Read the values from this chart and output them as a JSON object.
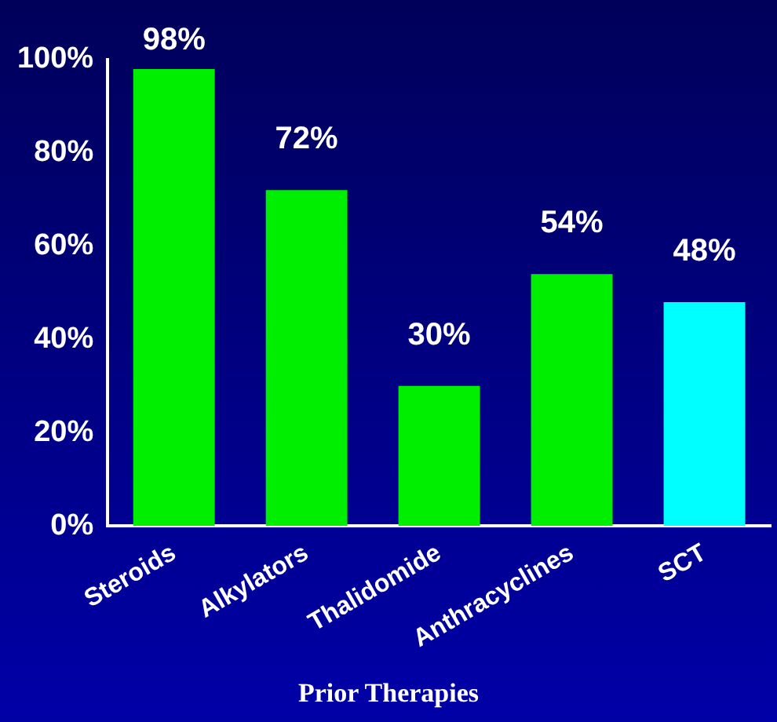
{
  "chart_data": {
    "type": "bar",
    "xlabel": "Prior Therapies",
    "categories": [
      "Steroids",
      "Alkylators",
      "Thalidomide",
      "Anthracyclines",
      "SCT"
    ],
    "values": [
      98,
      72,
      30,
      54,
      48
    ],
    "colors": [
      "#00ee00",
      "#00ee00",
      "#00ee00",
      "#00ee00",
      "#00ffff"
    ],
    "value_labels": [
      "98%",
      "72%",
      "30%",
      "54%",
      "48%"
    ],
    "ylim": [
      0,
      100
    ],
    "yticks": [
      {
        "value": 0,
        "label": "0%"
      },
      {
        "value": 20,
        "label": "20%"
      },
      {
        "value": 40,
        "label": "40%"
      },
      {
        "value": 60,
        "label": "60%"
      },
      {
        "value": 80,
        "label": "80%"
      },
      {
        "value": 100,
        "label": "100%"
      }
    ],
    "grid": false,
    "legend": false
  }
}
